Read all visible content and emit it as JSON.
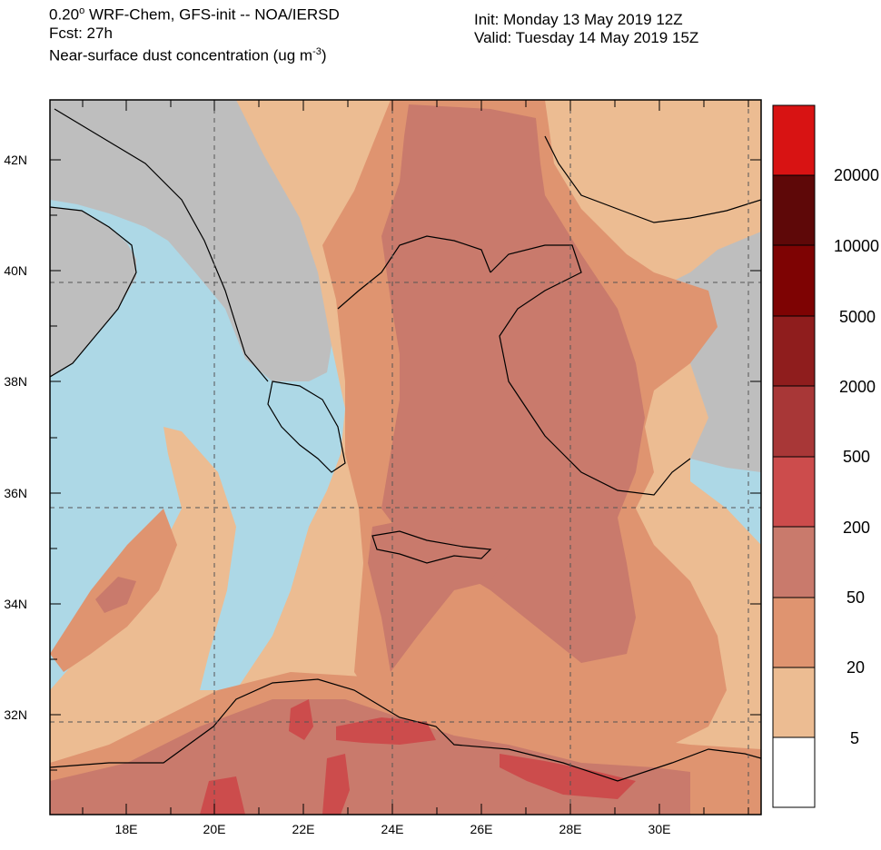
{
  "header": {
    "line1_prefix": "0.20",
    "line1_degree": "o",
    "line1_rest": " WRF-Chem, GFS-init -- NOA/IERSD",
    "line2": "Fcst: 27h",
    "line3_prefix": "Near-surface dust concentration (ug m",
    "line3_exp": "-3",
    "line3_suffix": ")",
    "init": "Init: Monday 13 May 2019  12Z",
    "valid": "Valid: Tuesday 14 May 2019  15Z"
  },
  "axes": {
    "lon_labels": [
      "18E",
      "20E",
      "22E",
      "24E",
      "26E",
      "28E",
      "30E"
    ],
    "lat_labels": [
      "42N",
      "40N",
      "38N",
      "36N",
      "34N",
      "32N"
    ]
  },
  "legend": {
    "labels": [
      "20000",
      "10000",
      "5000",
      "2000",
      "500",
      "200",
      "50",
      "20",
      "5"
    ],
    "colors": [
      "#d81313",
      "#5e0808",
      "#7e0303",
      "#8f1d1d",
      "#a83737",
      "#cc4c4c",
      "#c97a6c",
      "#df9470",
      "#ecbc92",
      "#ffffff"
    ]
  },
  "map_colors": {
    "sea": "#add8e6",
    "land": "#bebebe",
    "dust_5": "#ecbc92",
    "dust_20": "#df9470",
    "dust_50": "#c97a6c",
    "dust_200": "#cc4c4c"
  }
}
